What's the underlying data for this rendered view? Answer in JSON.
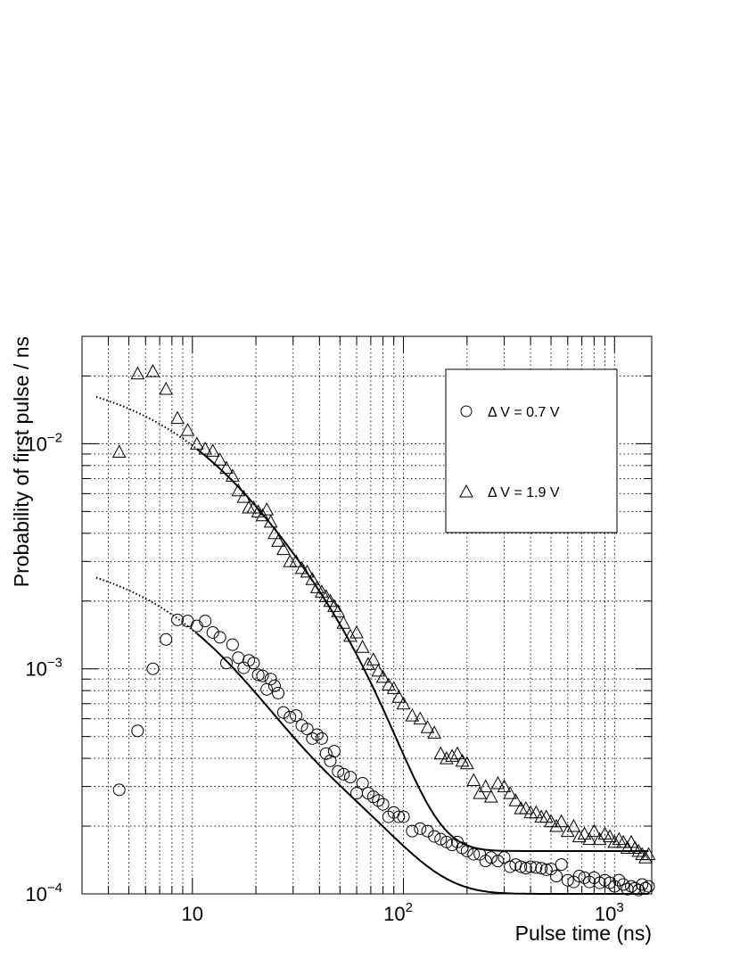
{
  "chart_data": {
    "type": "scatter",
    "xlabel": "Pulse time (ns)",
    "ylabel": "Probability of first pulse / ns",
    "xscale": "log",
    "yscale": "log",
    "xlim": [
      3.0,
      1500
    ],
    "ylim": [
      0.0001,
      0.03
    ],
    "grid": true,
    "legend_position": "top-right",
    "x_tick_labels": [
      {
        "value": 10,
        "base": "10",
        "exp": ""
      },
      {
        "value": 100,
        "base": "10",
        "exp": "2"
      },
      {
        "value": 1000,
        "base": "10",
        "exp": "3"
      }
    ],
    "y_tick_labels": [
      {
        "value": 0.0001,
        "base": "10",
        "exp": "−4"
      },
      {
        "value": 0.001,
        "base": "10",
        "exp": "−3"
      },
      {
        "value": 0.01,
        "base": "10",
        "exp": "−2"
      }
    ],
    "series": [
      {
        "name": "Δ V = 0.7 V",
        "marker": "circle",
        "x": [
          4.5,
          5.5,
          6.5,
          7.5,
          8.5,
          9.5,
          10.5,
          11.5,
          12.5,
          13.5,
          14.5,
          15.5,
          16.5,
          17.5,
          18.5,
          19.5,
          20.5,
          21.5,
          22.5,
          23.5,
          24.5,
          25.5,
          27,
          29,
          31,
          33,
          35,
          37,
          39,
          41,
          43,
          45,
          47,
          49,
          52,
          56,
          60,
          64,
          68,
          72,
          76,
          80,
          85,
          90,
          95,
          100,
          110,
          120,
          130,
          140,
          150,
          160,
          170,
          180,
          190,
          200,
          215,
          230,
          245,
          260,
          280,
          300,
          320,
          340,
          360,
          380,
          400,
          425,
          450,
          475,
          500,
          530,
          560,
          600,
          640,
          680,
          720,
          760,
          800,
          850,
          900,
          950,
          1000,
          1050,
          1100,
          1150,
          1200,
          1250,
          1300,
          1350,
          1400,
          1450
        ],
        "y": [
          0.00029,
          0.00053,
          0.001,
          0.00135,
          0.00165,
          0.00163,
          0.00155,
          0.00163,
          0.00145,
          0.00138,
          0.00106,
          0.00128,
          0.00112,
          0.00101,
          0.00109,
          0.00106,
          0.00094,
          0.00093,
          0.00081,
          0.0009,
          0.00084,
          0.00078,
          0.00064,
          0.00061,
          0.00062,
          0.00056,
          0.00054,
          0.00049,
          0.00051,
          0.00049,
          0.00042,
          0.00039,
          0.00043,
          0.00035,
          0.00034,
          0.00033,
          0.00028,
          0.00031,
          0.00028,
          0.00027,
          0.00026,
          0.00025,
          0.00022,
          0.00023,
          0.00022,
          0.00022,
          0.00019,
          0.000195,
          0.00019,
          0.00018,
          0.000175,
          0.00017,
          0.000165,
          0.00017,
          0.00016,
          0.000155,
          0.00015,
          0.00015,
          0.00014,
          0.000145,
          0.00014,
          0.000145,
          0.000132,
          0.000135,
          0.000132,
          0.00013,
          0.000132,
          0.000131,
          0.00013,
          0.000128,
          0.000129,
          0.00012,
          0.000135,
          0.000115,
          0.000113,
          0.00012,
          0.000118,
          0.000113,
          0.000118,
          0.000112,
          0.000115,
          0.000112,
          0.000108,
          0.000115,
          0.00011,
          0.000105,
          0.000108,
          0.000106,
          0.000104,
          0.00011,
          0.000106,
          0.000108
        ]
      },
      {
        "name": "Δ V = 1.9 V",
        "marker": "triangle",
        "x": [
          4.5,
          5.5,
          6.5,
          7.5,
          8.5,
          9.5,
          10.5,
          11.5,
          12.5,
          13.5,
          14.5,
          15.5,
          16.5,
          17.5,
          18.5,
          19.5,
          20.5,
          21.5,
          22.5,
          23.5,
          24.5,
          25.5,
          27,
          29,
          31,
          33,
          35,
          37,
          39,
          41,
          43,
          45,
          47,
          49,
          52,
          56,
          60,
          64,
          68,
          72,
          76,
          80,
          85,
          90,
          95,
          100,
          110,
          120,
          130,
          140,
          150,
          160,
          170,
          180,
          190,
          200,
          215,
          230,
          245,
          260,
          280,
          300,
          320,
          340,
          360,
          380,
          400,
          425,
          450,
          475,
          500,
          530,
          560,
          600,
          640,
          680,
          720,
          760,
          800,
          850,
          900,
          950,
          1000,
          1050,
          1100,
          1150,
          1200,
          1250,
          1300,
          1350,
          1400,
          1450
        ],
        "y": [
          0.0092,
          0.0205,
          0.021,
          0.0175,
          0.013,
          0.0115,
          0.01,
          0.0095,
          0.0093,
          0.0085,
          0.0078,
          0.0072,
          0.0062,
          0.0058,
          0.0052,
          0.0052,
          0.005,
          0.0048,
          0.0051,
          0.0045,
          0.004,
          0.0037,
          0.0034,
          0.003,
          0.003,
          0.0028,
          0.0027,
          0.0025,
          0.0023,
          0.0022,
          0.0021,
          0.002,
          0.0019,
          0.0018,
          0.0016,
          0.0014,
          0.00145,
          0.00125,
          0.00105,
          0.0011,
          0.00098,
          0.00092,
          0.00085,
          0.00082,
          0.00075,
          0.0007,
          0.00062,
          0.0006,
          0.00055,
          0.00052,
          0.00042,
          0.0004,
          0.00041,
          0.00042,
          0.00039,
          0.00038,
          0.00032,
          0.00028,
          0.0003,
          0.00027,
          0.00031,
          0.0003,
          0.00028,
          0.00026,
          0.00024,
          0.00024,
          0.00023,
          0.00023,
          0.00022,
          0.00022,
          0.00021,
          0.0002,
          0.00021,
          0.00019,
          0.0002,
          0.00018,
          0.000185,
          0.000175,
          0.00019,
          0.000175,
          0.000185,
          0.00018,
          0.00017,
          0.000175,
          0.00017,
          0.00016,
          0.00017,
          0.00016,
          0.000155,
          0.00015,
          0.000145,
          0.00015
        ]
      }
    ],
    "fits": [
      {
        "series": "Δ V = 0.7 V",
        "params": {
          "A": 0.0019,
          "tau1": 9,
          "B": 0.00054,
          "tau2": 45,
          "C": 0.0001,
          "x0": 3.5
        },
        "solid_from": 10.5,
        "x_end": 1450
      },
      {
        "series": "Δ V = 1.9 V",
        "params": {
          "A": 0.0095,
          "tau1": 8.5,
          "B": 0.0065,
          "tau2": 30,
          "C": 0.000155,
          "x0": 3.5
        },
        "solid_from": 10.5,
        "x_end": 1450
      }
    ]
  }
}
